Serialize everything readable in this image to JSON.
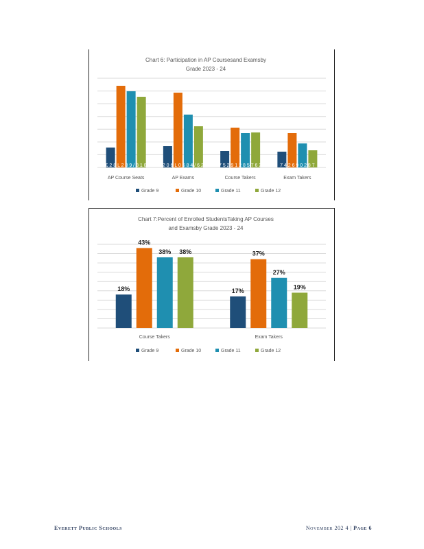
{
  "chart_data": [
    {
      "type": "bar",
      "title_line1": "Chart    6:  Participation         in   AP   Coursesand         Examsby",
      "title_line2": "Grade     2023    - 24",
      "categories": [
        "AP   Course     Seats",
        "AP    Exams",
        "Course      Takers",
        "Exam     Takers"
      ],
      "series": [
        {
          "name": "Grade     9",
          "values": [
            145,
            155,
            120,
            115
          ]
        },
        {
          "name": "Grade     10",
          "values": [
            595,
            545,
            290,
            250
          ]
        },
        {
          "name": "Grade     11",
          "values": [
            555,
            385,
            250,
            175
          ]
        },
        {
          "name": "Grade     12",
          "values": [
            515,
            300,
            255,
            125
          ]
        }
      ],
      "ylim": [
        0,
        650
      ],
      "gridlines": [
        0,
        100,
        200,
        300,
        400,
        500,
        600
      ],
      "value_labels_obscured": [
        "£ 2 8 L 2 8 9 / 8 1 8",
        "2 0 6 L 0 6 8 4 / 6 2",
        "7 5 2 9 1 2 8 5 7 6 2",
        "7 4 2 6 9 0 2 8 7"
      ],
      "legend_position": "bottom",
      "colors": [
        "#1f4e79",
        "#e36c0a",
        "#1f8fb0",
        "#8fa83b"
      ]
    },
    {
      "type": "bar",
      "title_line1": "Chart    7:Percent       of   Enrolled       StudentsTaking          AP   Courses",
      "title_line2": "and   Examsby       Grade    2023    - 24",
      "categories": [
        "Course     Takers",
        "Exam      Takers"
      ],
      "series": [
        {
          "name": "Grade     9",
          "values": [
            18,
            17
          ],
          "labels": [
            "18%",
            "17%"
          ]
        },
        {
          "name": "Grade     10",
          "values": [
            43,
            37
          ],
          "labels": [
            "43%",
            "37%"
          ]
        },
        {
          "name": "Grade     11",
          "values": [
            38,
            27
          ],
          "labels": [
            "38%",
            "27%"
          ]
        },
        {
          "name": "Grade     12",
          "values": [
            38,
            19
          ],
          "labels": [
            "38%",
            "19%"
          ]
        }
      ],
      "ylim": [
        0,
        45
      ],
      "legend_position": "bottom",
      "colors": [
        "#1f4e79",
        "#e36c0a",
        "#1f8fb0",
        "#8fa83b"
      ]
    }
  ],
  "footer": {
    "left": "Everett   Public   Schools",
    "right": "November   202 4 |",
    "page": "Page   6"
  }
}
